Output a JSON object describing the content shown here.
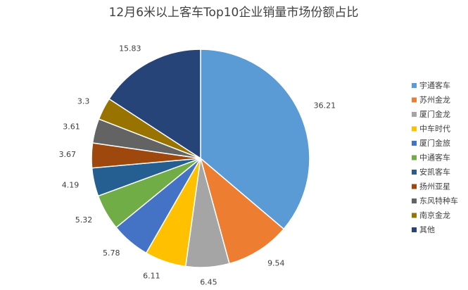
{
  "chart_data": {
    "type": "pie",
    "title": "12月6米以上客车Top10企业销量市场份额占比",
    "categories": [
      "宇通客车",
      "苏州金龙",
      "厦门金龙",
      "中车时代",
      "厦门金旅",
      "中通客车",
      "安凯客车",
      "扬州亚星",
      "东风特种车",
      "南京金龙",
      "其他"
    ],
    "values": [
      36.21,
      9.54,
      6.45,
      6.11,
      5.78,
      5.32,
      4.19,
      3.67,
      3.61,
      3.3,
      15.83
    ],
    "colors": [
      "#5b9bd5",
      "#ed7d31",
      "#a5a5a5",
      "#ffc000",
      "#4472c4",
      "#70ad47",
      "#255e91",
      "#9e480e",
      "#636363",
      "#997300",
      "#264478"
    ],
    "legend": "right"
  }
}
